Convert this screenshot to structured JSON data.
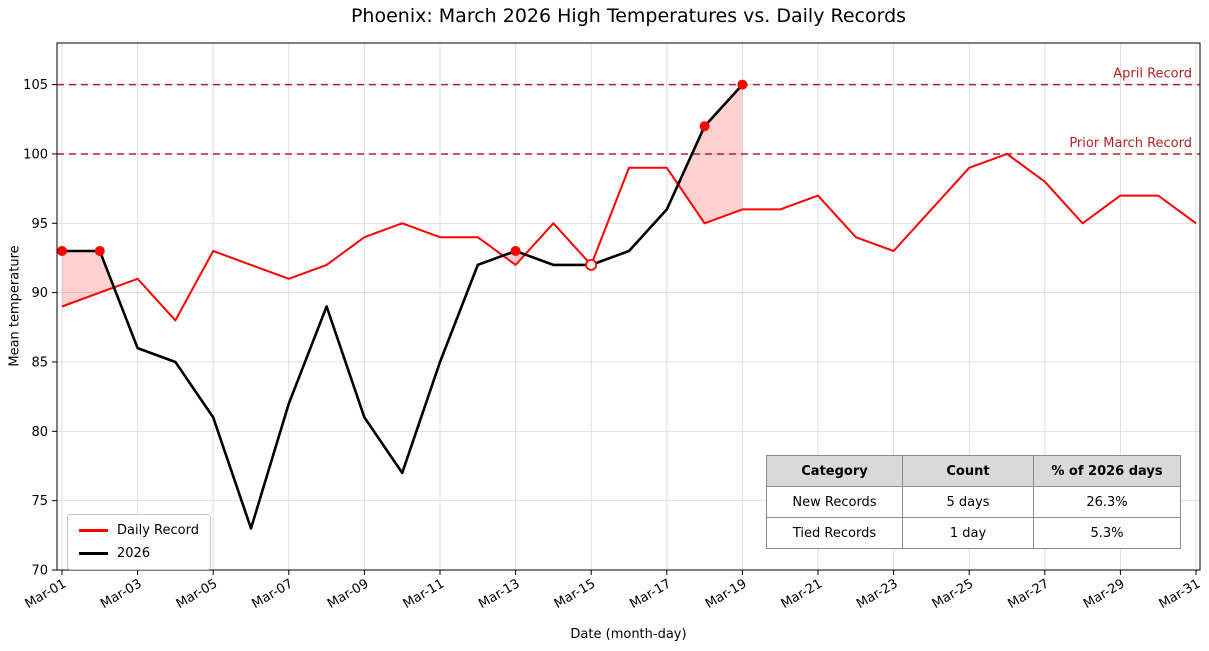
{
  "title": "Phoenix: March 2026 High Temperatures vs. Daily Records",
  "chart_data": {
    "type": "line",
    "title": "Phoenix: March 2026 High Temperatures vs. Daily Records",
    "xlabel": "Date (month-day)",
    "ylabel": "Mean temperature",
    "ylim": [
      70,
      108
    ],
    "yticks": [
      70,
      75,
      80,
      85,
      90,
      95,
      100,
      105
    ],
    "x_range": [
      1,
      31
    ],
    "grid": true,
    "legend_position": "lower left",
    "xticks": [
      {
        "day": 1,
        "label": "Mar-01"
      },
      {
        "day": 3,
        "label": "Mar-03"
      },
      {
        "day": 5,
        "label": "Mar-05"
      },
      {
        "day": 7,
        "label": "Mar-07"
      },
      {
        "day": 9,
        "label": "Mar-09"
      },
      {
        "day": 11,
        "label": "Mar-11"
      },
      {
        "day": 13,
        "label": "Mar-13"
      },
      {
        "day": 15,
        "label": "Mar-15"
      },
      {
        "day": 17,
        "label": "Mar-17"
      },
      {
        "day": 19,
        "label": "Mar-19"
      },
      {
        "day": 21,
        "label": "Mar-21"
      },
      {
        "day": 23,
        "label": "Mar-23"
      },
      {
        "day": 25,
        "label": "Mar-25"
      },
      {
        "day": 27,
        "label": "Mar-27"
      },
      {
        "day": 29,
        "label": "Mar-29"
      },
      {
        "day": 31,
        "label": "Mar-31"
      }
    ],
    "series": [
      {
        "name": "Daily Record",
        "color": "#ff0000",
        "line_width": 2,
        "days": [
          1,
          2,
          3,
          4,
          5,
          6,
          7,
          8,
          9,
          10,
          11,
          12,
          13,
          14,
          15,
          16,
          17,
          18,
          19,
          20,
          21,
          22,
          23,
          24,
          25,
          26,
          27,
          28,
          29,
          30,
          31
        ],
        "values": [
          89,
          90,
          91,
          88,
          93,
          92,
          91,
          92,
          94,
          95,
          94,
          94,
          92,
          95,
          92,
          99,
          99,
          95,
          96,
          96,
          97,
          94,
          93,
          96,
          99,
          100,
          98,
          95,
          97,
          97,
          95
        ]
      },
      {
        "name": "2026",
        "color": "#000000",
        "line_width": 2.6,
        "days": [
          1,
          2,
          3,
          4,
          5,
          6,
          7,
          8,
          9,
          10,
          11,
          12,
          13,
          14,
          15,
          16,
          17,
          18,
          19
        ],
        "values": [
          93,
          93,
          86,
          85,
          81,
          73,
          82,
          89,
          81,
          77,
          85,
          92,
          93,
          92,
          92,
          93,
          96,
          102,
          105
        ]
      }
    ],
    "reference_lines": [
      {
        "label": "April Record",
        "value": 105,
        "color": "#b22222"
      },
      {
        "label": "Prior March Record",
        "value": 100,
        "color": "#b22222"
      }
    ],
    "markers": {
      "new_records": {
        "days": [
          1,
          2,
          13,
          18,
          19
        ],
        "style": "filled-red-dot"
      },
      "tied_records": {
        "days": [
          15
        ],
        "style": "open-red-circle"
      }
    },
    "fill_between": {
      "color": "#ff0000",
      "opacity": 0.18,
      "where": "2026 above Daily Record"
    }
  },
  "table": {
    "headers": [
      "Category",
      "Count",
      "% of 2026 days"
    ],
    "rows": [
      [
        "New Records",
        "5 days",
        "26.3%"
      ],
      [
        "Tied Records",
        "1 day",
        "5.3%"
      ]
    ]
  }
}
